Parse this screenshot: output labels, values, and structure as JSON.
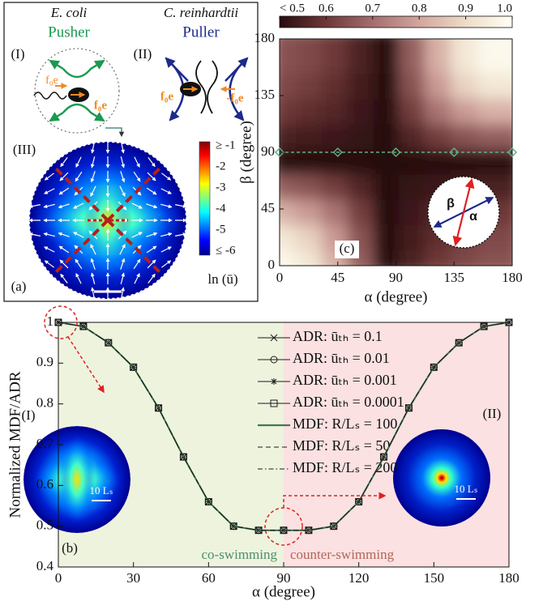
{
  "diagram": {
    "panel_label": "(a)",
    "pusher": {
      "organism": "E. coli",
      "kind": "Pusher",
      "label": "(I)",
      "force_labels": [
        "f₀e",
        "f₀e"
      ]
    },
    "puller": {
      "organism": "C. reinhardtii",
      "kind": "Puller",
      "label": "(II)",
      "force_labels": [
        "f₀e",
        "-f₀e"
      ]
    },
    "flow_label": "(III)",
    "colorbar_labels": [
      "≥ -1",
      "-2",
      "-3",
      "-4",
      "-5",
      "≤ -6"
    ],
    "colorbar_title": "ln (ū)"
  },
  "chart_data": [
    {
      "type": "heatmap",
      "panel_label": "(c)",
      "xlabel": "α (degree)",
      "ylabel": "β (degree)",
      "x": [
        10,
        30,
        50,
        70,
        90,
        110,
        130,
        150,
        170
      ],
      "y": [
        10,
        30,
        50,
        70,
        90,
        110,
        130,
        150,
        170
      ],
      "values": [
        [
          0.98,
          0.93,
          0.82,
          0.67,
          0.5,
          0.55,
          0.6,
          0.63,
          0.65
        ],
        [
          0.93,
          0.88,
          0.78,
          0.65,
          0.5,
          0.54,
          0.58,
          0.61,
          0.63
        ],
        [
          0.82,
          0.78,
          0.71,
          0.61,
          0.5,
          0.53,
          0.56,
          0.58,
          0.6
        ],
        [
          0.67,
          0.65,
          0.61,
          0.56,
          0.5,
          0.52,
          0.53,
          0.54,
          0.55
        ],
        [
          0.5,
          0.5,
          0.5,
          0.5,
          0.5,
          0.5,
          0.5,
          0.5,
          0.5
        ],
        [
          0.55,
          0.54,
          0.53,
          0.52,
          0.5,
          0.56,
          0.61,
          0.65,
          0.67
        ],
        [
          0.6,
          0.58,
          0.56,
          0.53,
          0.5,
          0.61,
          0.71,
          0.78,
          0.82
        ],
        [
          0.63,
          0.61,
          0.58,
          0.54,
          0.5,
          0.65,
          0.78,
          0.88,
          0.93
        ],
        [
          0.65,
          0.63,
          0.6,
          0.55,
          0.5,
          0.67,
          0.82,
          0.93,
          0.98
        ]
      ],
      "xlim": [
        0,
        180
      ],
      "ylim": [
        0,
        180
      ],
      "xticks": [
        0,
        45,
        90,
        135,
        180
      ],
      "yticks": [
        0,
        45,
        90,
        135,
        180
      ],
      "clim": [
        0.5,
        1
      ],
      "colorbar_ticks": [
        {
          "value": 0.5,
          "label": "< 0.5"
        },
        0.6,
        0.7,
        0.8,
        0.9,
        {
          "value": 1,
          "label": "1.0"
        }
      ],
      "overlay": {
        "x": [
          0,
          45,
          90,
          135,
          180
        ],
        "values": [
          90,
          90,
          90,
          90,
          90
        ],
        "color": "#5fae7f"
      },
      "inset_labels": [
        "β",
        "α"
      ]
    },
    {
      "type": "line",
      "panel_label": "(b)",
      "xlabel": "α (degree)",
      "ylabel": "Normalized MDF/ADR",
      "x": [
        0,
        10,
        20,
        30,
        40,
        50,
        60,
        70,
        80,
        90,
        100,
        110,
        120,
        130,
        140,
        150,
        160,
        170,
        180
      ],
      "xlim": [
        0,
        180
      ],
      "ylim": [
        0.4,
        1
      ],
      "xticks": [
        0,
        30,
        60,
        90,
        120,
        150,
        180
      ],
      "yticks": [
        0.4,
        0.5,
        0.6,
        0.7,
        0.8,
        0.9,
        1
      ],
      "regions": [
        {
          "label": "co-swimming",
          "from": 0,
          "to": 90,
          "color": "#eef3de",
          "text_color": "#4f8f6e"
        },
        {
          "label": "counter-swimming",
          "from": 90,
          "to": 180,
          "color": "#fbe1e1",
          "text_color": "#b0665a"
        }
      ],
      "inset_labels": [
        "(I)",
        "(II)"
      ],
      "scale_labels": [
        "10 Lₛ",
        "10 Lₛ"
      ],
      "series": [
        {
          "name": "ADR: ūₜₕ = 0.1",
          "color": "#1a1a1a",
          "marker": "x",
          "linestyle": "solid",
          "values": [
            1,
            0.99,
            0.95,
            0.89,
            0.79,
            0.67,
            0.56,
            0.5,
            0.49,
            0.49,
            0.49,
            0.5,
            0.56,
            0.67,
            0.79,
            0.89,
            0.95,
            0.99,
            1
          ]
        },
        {
          "name": "ADR: ūₜₕ = 0.01",
          "color": "#1a1a1a",
          "marker": "o",
          "linestyle": "solid",
          "values": [
            1,
            0.99,
            0.95,
            0.89,
            0.79,
            0.67,
            0.56,
            0.5,
            0.49,
            0.49,
            0.49,
            0.5,
            0.56,
            0.67,
            0.79,
            0.89,
            0.95,
            0.99,
            1
          ]
        },
        {
          "name": "ADR: ūₜₕ = 0.001",
          "color": "#1a1a1a",
          "marker": "*",
          "linestyle": "solid",
          "values": [
            1,
            0.99,
            0.95,
            0.89,
            0.79,
            0.67,
            0.56,
            0.5,
            0.49,
            0.49,
            0.49,
            0.5,
            0.56,
            0.67,
            0.79,
            0.89,
            0.95,
            0.99,
            1
          ]
        },
        {
          "name": "ADR: ūₜₕ = 0.0001",
          "color": "#1a1a1a",
          "marker": "s",
          "linestyle": "solid",
          "values": [
            1,
            0.99,
            0.95,
            0.89,
            0.79,
            0.67,
            0.56,
            0.5,
            0.49,
            0.49,
            0.49,
            0.5,
            0.56,
            0.67,
            0.79,
            0.89,
            0.95,
            0.99,
            1
          ]
        },
        {
          "name": "MDF: R/Lₛ = 100",
          "color": "#3d7a50",
          "linestyle": "solid",
          "values": [
            1,
            0.99,
            0.95,
            0.89,
            0.79,
            0.67,
            0.56,
            0.5,
            0.49,
            0.49,
            0.49,
            0.5,
            0.56,
            0.67,
            0.79,
            0.89,
            0.95,
            0.99,
            1
          ]
        },
        {
          "name": "MDF: R/Lₛ = 50",
          "color": "#1a1a1a",
          "linestyle": "dashed",
          "values": [
            1,
            0.99,
            0.95,
            0.89,
            0.79,
            0.67,
            0.56,
            0.5,
            0.49,
            0.49,
            0.49,
            0.5,
            0.56,
            0.67,
            0.79,
            0.89,
            0.95,
            0.99,
            1
          ]
        },
        {
          "name": "MDF: R/Lₛ = 200",
          "color": "#1a1a1a",
          "linestyle": "dashdot",
          "values": [
            1,
            0.99,
            0.95,
            0.89,
            0.79,
            0.67,
            0.56,
            0.5,
            0.49,
            0.49,
            0.49,
            0.5,
            0.56,
            0.67,
            0.79,
            0.89,
            0.95,
            0.99,
            1
          ]
        }
      ]
    }
  ]
}
